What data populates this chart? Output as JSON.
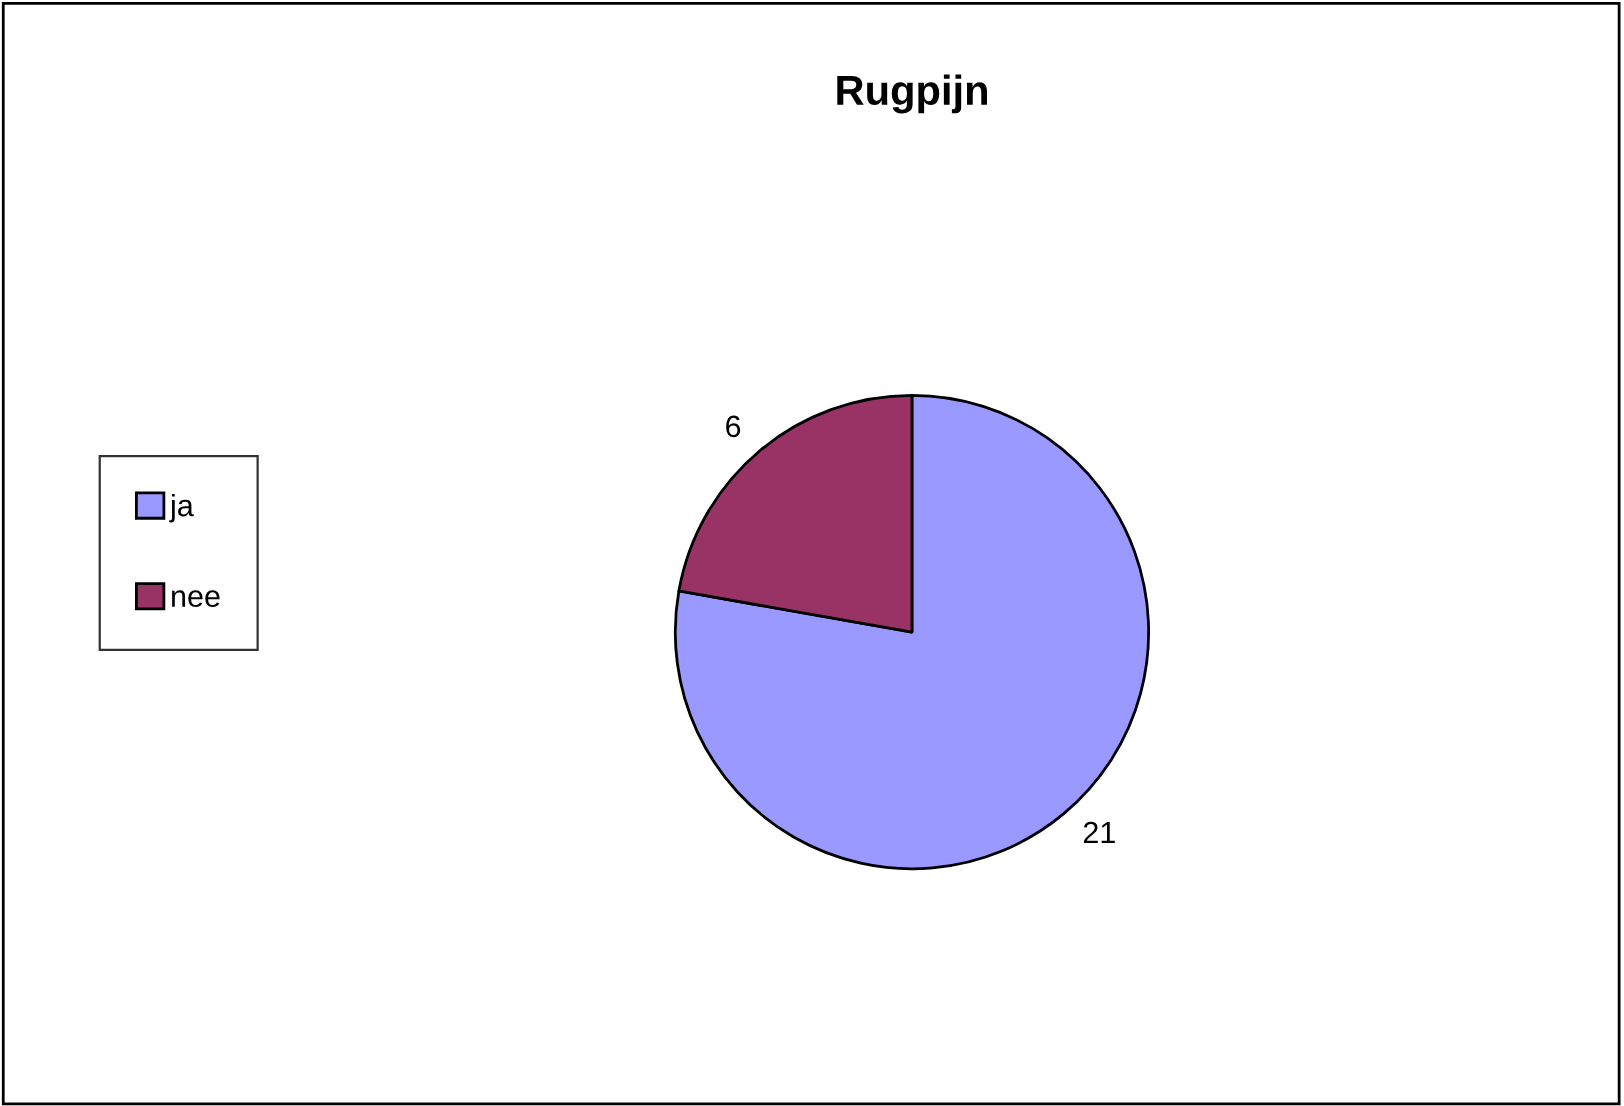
{
  "chart_data": {
    "type": "pie",
    "title": "Rugpijn",
    "categories": [
      "ja",
      "nee"
    ],
    "values": [
      21,
      6
    ],
    "colors": [
      "#9999ff",
      "#993366"
    ],
    "data_labels": true,
    "legend": "left"
  }
}
